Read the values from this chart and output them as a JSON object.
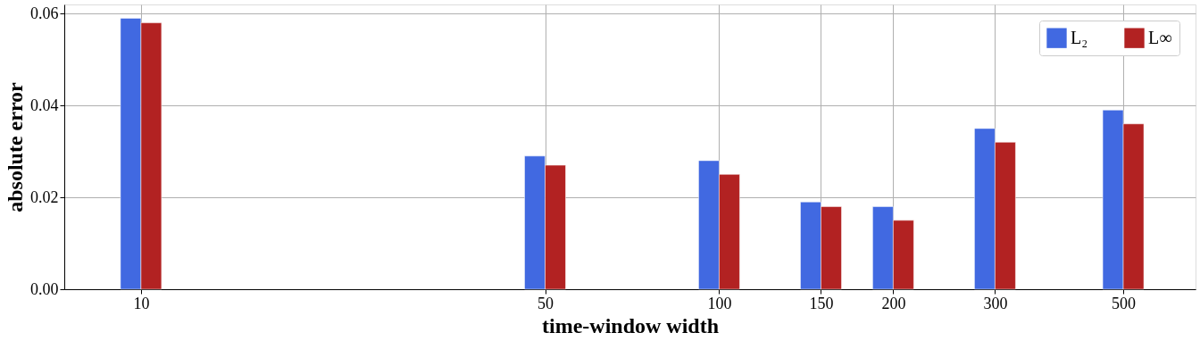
{
  "chart_data": {
    "type": "bar",
    "xlabel": "time-window width",
    "ylabel": "absolute error",
    "x": [
      10,
      50,
      100,
      150,
      200,
      300,
      500
    ],
    "series": [
      {
        "name": "L₂",
        "color": "#4169e1",
        "values": [
          0.059,
          0.029,
          0.028,
          0.019,
          0.018,
          0.035,
          0.039
        ]
      },
      {
        "name": "L∞",
        "color": "#b22222",
        "values": [
          0.058,
          0.027,
          0.025,
          0.018,
          0.015,
          0.032,
          0.036
        ]
      }
    ],
    "log": "x",
    "xlim": [
      7.5,
      655
    ],
    "xticks": [
      10,
      50,
      100,
      150,
      200,
      300,
      500
    ],
    "ylim": [
      0,
      0.062
    ],
    "yticks": [
      {
        "value": 0,
        "label": "0.00"
      },
      {
        "value": 0.02,
        "label": "0.02"
      },
      {
        "value": 0.04,
        "label": "0.04"
      },
      {
        "value": 0.06,
        "label": "0.06"
      }
    ],
    "grid": true,
    "legend": "top right"
  }
}
